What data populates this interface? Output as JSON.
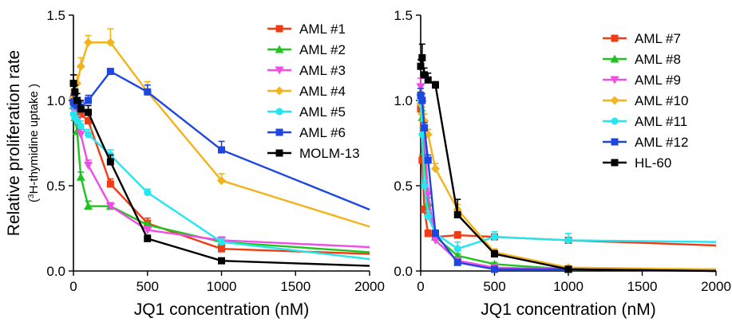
{
  "chart_data": [
    {
      "type": "line",
      "title": "",
      "xlabel": "JQ1 concentration (nM)",
      "ylabel": "Relative proliferation rate",
      "ylabel_sub": [
        "3",
        "H-thymidine uptake )"
      ],
      "ylabel_sub_open": "(",
      "xlim": [
        0,
        2000
      ],
      "ylim": [
        0,
        1.5
      ],
      "xticks": [
        "0",
        "500",
        "1000",
        "1500",
        "2000"
      ],
      "yticks": [
        "0.0",
        "0.5",
        "1.0",
        "1.5"
      ],
      "grid": false,
      "legend": "top-right",
      "x": [
        0,
        10,
        25,
        50,
        100,
        250,
        500,
        1000,
        2000
      ],
      "series": [
        {
          "name": "AML #1",
          "color": "#f03c14",
          "marker": "square",
          "values": [
            1.0,
            0.97,
            0.93,
            0.92,
            0.88,
            0.51,
            0.28,
            0.13,
            0.1
          ],
          "errors": [
            0.04,
            0.03,
            0.03,
            0.03,
            0.04,
            0.03,
            0.03,
            0.02,
            0.0
          ]
        },
        {
          "name": "AML #2",
          "color": "#1fc41f",
          "marker": "triangle-up",
          "values": [
            0.97,
            0.9,
            0.82,
            0.55,
            0.38,
            0.38,
            0.27,
            0.17,
            0.11
          ],
          "errors": [
            0.04,
            0.04,
            0.04,
            0.03,
            0.03,
            0.02,
            0.02,
            0.02,
            0.0
          ]
        },
        {
          "name": "AML #3",
          "color": "#f04ce6",
          "marker": "triangle-down",
          "values": [
            0.97,
            0.93,
            0.88,
            0.8,
            0.62,
            0.38,
            0.24,
            0.18,
            0.14
          ],
          "errors": [
            0.04,
            0.04,
            0.03,
            0.03,
            0.03,
            0.02,
            0.02,
            0.02,
            0.0
          ]
        },
        {
          "name": "AML #4",
          "color": "#f2b31d",
          "marker": "diamond",
          "values": [
            1.02,
            1.05,
            1.1,
            1.2,
            1.34,
            1.34,
            1.05,
            0.53,
            0.26
          ],
          "errors": [
            0.04,
            0.04,
            0.05,
            0.05,
            0.04,
            0.08,
            0.06,
            0.04,
            0.0
          ]
        },
        {
          "name": "AML #5",
          "color": "#22e6f0",
          "marker": "circle",
          "values": [
            0.92,
            0.9,
            0.88,
            0.85,
            0.8,
            0.68,
            0.46,
            0.17,
            0.07
          ],
          "errors": [
            0.04,
            0.03,
            0.03,
            0.03,
            0.03,
            0.03,
            0.02,
            0.02,
            0.0
          ]
        },
        {
          "name": "AML #6",
          "color": "#1d46e0",
          "marker": "square",
          "values": [
            0.99,
            0.98,
            0.97,
            0.96,
            1.0,
            1.17,
            1.05,
            0.71,
            0.36
          ],
          "errors": [
            0.04,
            0.03,
            0.03,
            0.03,
            0.03,
            0.01,
            0.04,
            0.05,
            0.0
          ]
        },
        {
          "name": "MOLM-13",
          "color": "#000000",
          "marker": "square",
          "values": [
            1.1,
            1.05,
            1.0,
            0.95,
            0.93,
            0.64,
            0.19,
            0.06,
            0.03
          ],
          "errors": [
            0.05,
            0.04,
            0.04,
            0.05,
            0.04,
            0.04,
            0.02,
            0.01,
            0.0
          ]
        }
      ]
    },
    {
      "type": "line",
      "title": "",
      "xlabel": "JQ1 concentration (nM)",
      "ylabel": "",
      "xlim": [
        0,
        2000
      ],
      "ylim": [
        0,
        1.5
      ],
      "xticks": [
        "0",
        "500",
        "1000",
        "1500",
        "2000"
      ],
      "yticks": [
        "0.0",
        "0.5",
        "1.0",
        "1.5"
      ],
      "grid": false,
      "legend": "top-right",
      "x": [
        0,
        10,
        25,
        50,
        100,
        250,
        500,
        1000,
        2000
      ],
      "series": [
        {
          "name": "AML #7",
          "color": "#f03c14",
          "marker": "square",
          "values": [
            0.95,
            0.65,
            0.36,
            0.22,
            0.2,
            0.21,
            0.2,
            0.18,
            0.15
          ],
          "errors": [
            0.04,
            0.03,
            0.02,
            0.02,
            0.02,
            0.02,
            0.01,
            0.01,
            0.0
          ]
        },
        {
          "name": "AML #8",
          "color": "#1fc41f",
          "marker": "triangle-up",
          "values": [
            1.05,
            0.9,
            0.7,
            0.4,
            0.2,
            0.09,
            0.04,
            0.01,
            0.01
          ],
          "errors": [
            0.04,
            0.04,
            0.03,
            0.03,
            0.02,
            0.01,
            0.01,
            0.0,
            0.0
          ]
        },
        {
          "name": "AML #9",
          "color": "#f04ce6",
          "marker": "triangle-down",
          "values": [
            1.08,
            0.98,
            0.78,
            0.45,
            0.18,
            0.06,
            0.02,
            0.01,
            0.0
          ],
          "errors": [
            0.05,
            0.04,
            0.04,
            0.03,
            0.03,
            0.01,
            0.0,
            0.0,
            0.0
          ]
        },
        {
          "name": "AML #10",
          "color": "#f2b31d",
          "marker": "diamond",
          "values": [
            0.98,
            0.92,
            0.88,
            0.8,
            0.6,
            0.36,
            0.11,
            0.02,
            0.01
          ],
          "errors": [
            0.04,
            0.04,
            0.04,
            0.03,
            0.03,
            0.03,
            0.02,
            0.01,
            0.0
          ]
        },
        {
          "name": "AML #11",
          "color": "#22e6f0",
          "marker": "circle",
          "values": [
            1.0,
            0.8,
            0.5,
            0.32,
            0.22,
            0.13,
            0.2,
            0.18,
            0.17
          ],
          "errors": [
            0.04,
            0.04,
            0.03,
            0.03,
            0.02,
            0.04,
            0.03,
            0.04,
            0.0
          ]
        },
        {
          "name": "AML #12",
          "color": "#1d46e0",
          "marker": "square",
          "values": [
            1.03,
            1.0,
            0.84,
            0.65,
            0.22,
            0.05,
            0.01,
            0.01,
            0.0
          ],
          "errors": [
            0.04,
            0.04,
            0.03,
            0.03,
            0.02,
            0.01,
            0.0,
            0.0,
            0.0
          ]
        },
        {
          "name": "HL-60",
          "color": "#000000",
          "marker": "square",
          "values": [
            1.2,
            1.25,
            1.15,
            1.12,
            1.09,
            0.33,
            0.1,
            0.01,
            0.0
          ],
          "errors": [
            0.04,
            0.08,
            0.04,
            0.04,
            0.02,
            0.09,
            0.02,
            0.01,
            0.0
          ]
        }
      ]
    }
  ]
}
